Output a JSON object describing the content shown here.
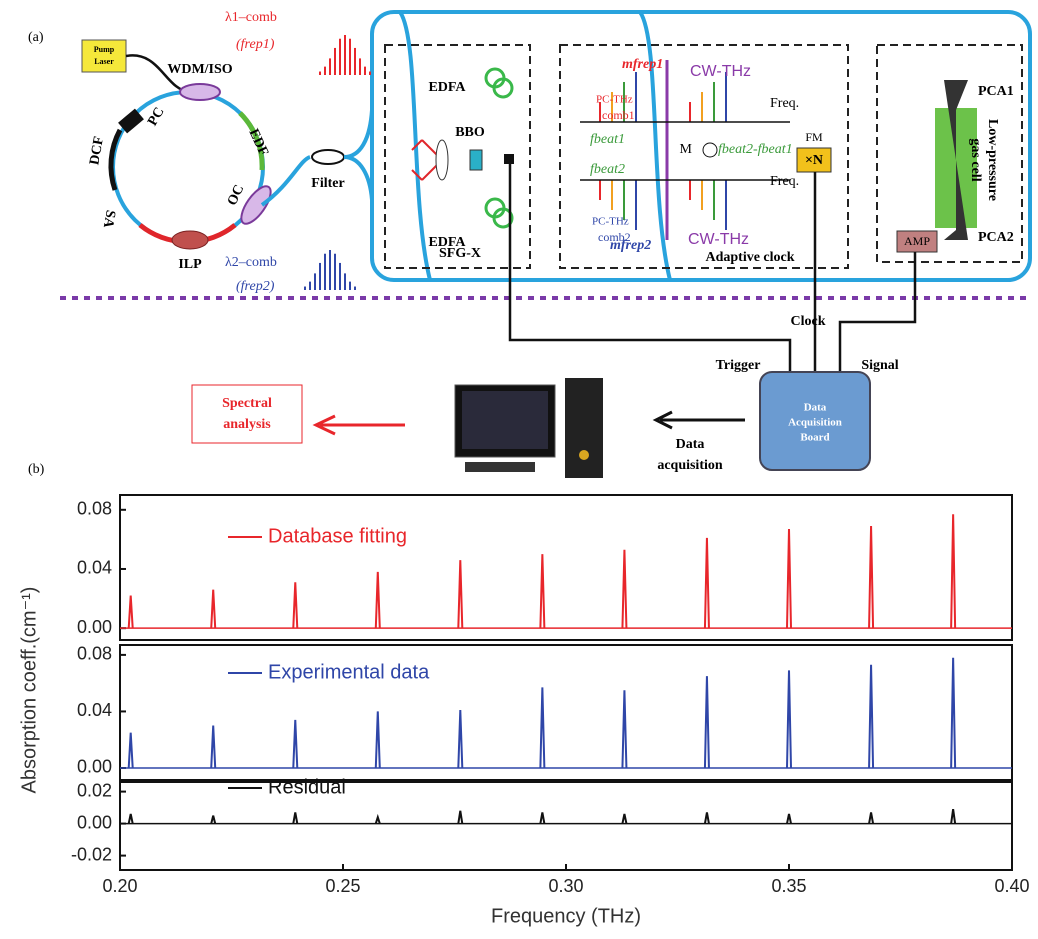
{
  "figure_a": {
    "panel_label": "(a)",
    "pump_laser": [
      "Pump",
      "Laser"
    ],
    "wdm_iso": "WDM/ISO",
    "pc": "PC",
    "dcf": "DCF",
    "edf": "EDF",
    "oc": "OC",
    "sa": "SA",
    "ilp": "ILP",
    "filter": "Filter",
    "edfa": [
      "EDFA",
      "EDFA"
    ],
    "comb1": "λ1–comb",
    "comb1_rate": "(frep1)",
    "comb2": "λ2–comb",
    "comb2_rate": "(frep2)",
    "bbo": "BBO",
    "sfg": "SFG-X",
    "mfrep1": "mfrep1",
    "pc_thz_comb1": [
      "PC-THz",
      "comb1"
    ],
    "cw_thz": [
      "CW-THz",
      "CW-THz"
    ],
    "freq": [
      "Freq.",
      "Freq."
    ],
    "fbeat1": "fbeat1",
    "mixer": "M",
    "fbeat_diff": "fbeat2-fbeat1",
    "fm": "FM",
    "multiplier": "×N",
    "fbeat2": "fbeat2",
    "pc_thz_comb2": [
      "PC-THz",
      "comb2"
    ],
    "mfrep2": "mfrep2",
    "adaptive_clock": "Adaptive clock",
    "pca1": "PCA1",
    "gas_cell": [
      "Low-pressure",
      "gas cell"
    ],
    "pca2": "PCA2",
    "amp": "AMP",
    "clock": "Clock",
    "trigger": "Trigger",
    "signal": "Signal",
    "daq_board": [
      "Data",
      "Acquisition",
      "Board"
    ],
    "data_acquisition": [
      "Data",
      "acquisition"
    ],
    "spectral_analysis": [
      "Spectral",
      "analysis"
    ]
  },
  "panel_b_label": "(b)",
  "chart_data": [
    {
      "type": "stem",
      "series": [
        {
          "name": "Database fitting",
          "color": "#e8262b"
        }
      ],
      "x": [
        0.2024,
        0.2209,
        0.2393,
        0.2578,
        0.2763,
        0.2947,
        0.3131,
        0.3316,
        0.35,
        0.3684,
        0.3868
      ],
      "values": [
        0.022,
        0.026,
        0.031,
        0.038,
        0.046,
        0.05,
        0.053,
        0.061,
        0.067,
        0.069,
        0.077
      ],
      "xlim": [
        0.2,
        0.4
      ],
      "ylim": [
        -0.008,
        0.09
      ],
      "yticks": [
        {
          "value": 0,
          "label": "0.00"
        },
        0.04,
        0.08
      ]
    },
    {
      "type": "stem",
      "series": [
        {
          "name": "Experimental data",
          "color": "#2f46a8"
        }
      ],
      "x": [
        0.2024,
        0.2209,
        0.2393,
        0.2578,
        0.2763,
        0.2947,
        0.3131,
        0.3316,
        0.35,
        0.3684,
        0.3868
      ],
      "values": [
        0.025,
        0.03,
        0.034,
        0.04,
        0.041,
        0.057,
        0.055,
        0.065,
        0.069,
        0.073,
        0.078
      ],
      "xlim": [
        0.2,
        0.4
      ],
      "ylim": [
        -0.0085,
        0.087
      ],
      "yticks": [
        {
          "value": 0,
          "label": "0.00"
        },
        0.04,
        0.08
      ],
      "ylabel": "Absorption coeff.(cm⁻¹)"
    },
    {
      "type": "stem",
      "series": [
        {
          "name": "Residual",
          "color": "#111111"
        }
      ],
      "x": [
        0.2024,
        0.2209,
        0.2393,
        0.2578,
        0.2763,
        0.2947,
        0.3131,
        0.3316,
        0.35,
        0.3684,
        0.3868
      ],
      "values": [
        0.006,
        0.005,
        0.007,
        0.004,
        0.008,
        0.007,
        0.006,
        0.007,
        0.006,
        0.007,
        0.009
      ],
      "xlim": [
        0.2,
        0.4
      ],
      "ylim": [
        -0.029,
        0.026
      ],
      "yticks": [
        -0.02,
        {
          "value": 0,
          "label": "0.00"
        },
        0.02
      ],
      "xticks": [
        {
          "value": 0.2,
          "label": "0.20"
        },
        0.25,
        {
          "value": 0.3,
          "label": "0.30"
        },
        0.35,
        {
          "value": 0.4,
          "label": "0.40"
        }
      ],
      "xlabel": "Frequency (THz)"
    }
  ]
}
